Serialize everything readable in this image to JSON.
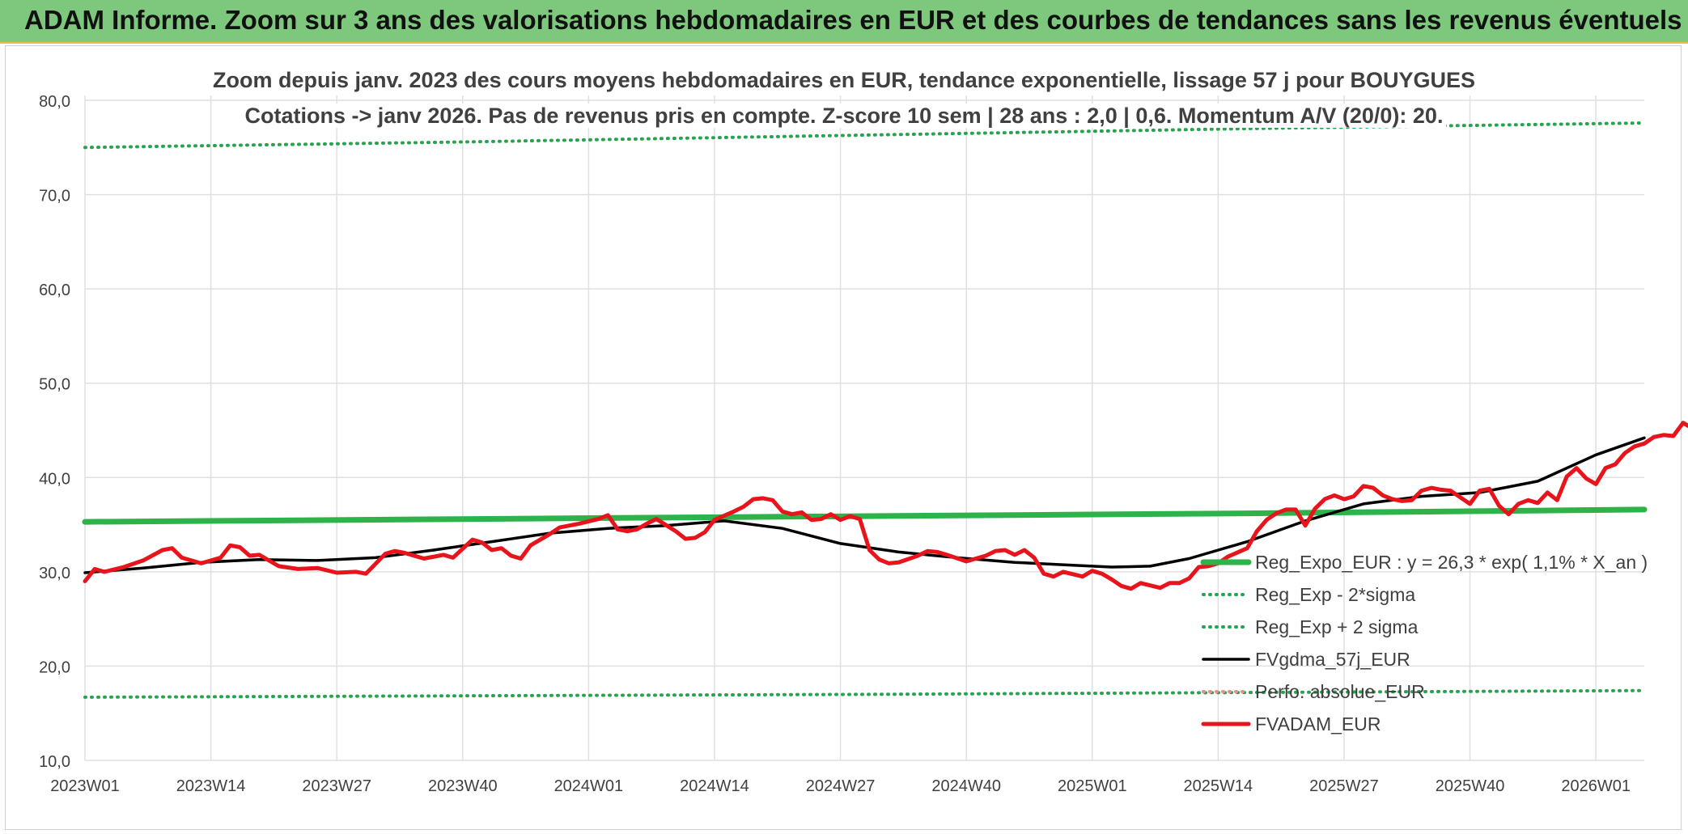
{
  "banner": {
    "title": "ADAM Informe. Zoom sur 3 ans des valorisations hebdomadaires en EUR et des courbes de tendances sans les revenus éventuels"
  },
  "chart_data": {
    "type": "line",
    "title": "Zoom depuis janv. 2023 des cours moyens hebdomadaires en EUR, tendance exponentielle, lissage 57 j pour BOUYGUES",
    "subtitle": "Cotations -> janv 2026. Pas de revenus pris en compte. Z-score 10 sem | 28 ans : 2,0 | 0,6. Momentum A/V (20/0): 20.",
    "x_tick_labels": [
      "2023W01",
      "2023W14",
      "2023W27",
      "2023W40",
      "2024W01",
      "2024W14",
      "2024W27",
      "2024W40",
      "2025W01",
      "2025W14",
      "2025W27",
      "2025W40",
      "2026W01"
    ],
    "x_week_range": [
      0,
      161
    ],
    "y_tick_labels": [
      "10,0",
      "20,0",
      "30,0",
      "40,0",
      "50,0",
      "60,0",
      "70,0",
      "80,0"
    ],
    "ylim": [
      10,
      80
    ],
    "grid": true,
    "legend_position": "right",
    "colors": {
      "trend_green": "#2db34a",
      "dotted_green": "#1fa84a",
      "smooth_black": "#000000",
      "price_red": "#e8141c",
      "perf_dotted": "#e09090",
      "grid": "#e0e0e0",
      "tick_text": "#404040"
    },
    "series": [
      {
        "name": "Reg_Expo_EUR : y = 26,3 * exp( 1,1% *  X_an )",
        "style": "solid-thick",
        "color": "#2db34a",
        "points": [
          [
            0,
            35.3
          ],
          [
            40,
            35.6
          ],
          [
            80,
            35.9
          ],
          [
            120,
            36.2
          ],
          [
            161,
            36.6
          ]
        ]
      },
      {
        "name": "Reg_Exp - 2*sigma",
        "style": "dotted",
        "color": "#1fa84a",
        "points": [
          [
            0,
            16.7
          ],
          [
            80,
            17.0
          ],
          [
            161,
            17.4
          ]
        ]
      },
      {
        "name": "Reg_Exp + 2 sigma",
        "style": "dotted",
        "color": "#1fa84a",
        "points": [
          [
            0,
            75.0
          ],
          [
            40,
            75.6
          ],
          [
            80,
            76.3
          ],
          [
            120,
            77.0
          ],
          [
            161,
            77.6
          ]
        ]
      },
      {
        "name": "FVgdma_57j_EUR",
        "style": "solid",
        "color": "#000000",
        "points": [
          [
            0,
            29.9
          ],
          [
            6,
            30.4
          ],
          [
            12,
            31.0
          ],
          [
            18,
            31.3
          ],
          [
            24,
            31.2
          ],
          [
            30,
            31.5
          ],
          [
            36,
            32.3
          ],
          [
            42,
            33.2
          ],
          [
            48,
            34.1
          ],
          [
            54,
            34.6
          ],
          [
            60,
            34.9
          ],
          [
            66,
            35.4
          ],
          [
            72,
            34.6
          ],
          [
            78,
            33.0
          ],
          [
            84,
            32.1
          ],
          [
            90,
            31.5
          ],
          [
            96,
            31.0
          ],
          [
            102,
            30.7
          ],
          [
            106,
            30.5
          ],
          [
            110,
            30.6
          ],
          [
            114,
            31.4
          ],
          [
            120,
            33.2
          ],
          [
            126,
            35.4
          ],
          [
            132,
            37.2
          ],
          [
            138,
            38.0
          ],
          [
            144,
            38.4
          ],
          [
            150,
            39.6
          ],
          [
            156,
            42.4
          ],
          [
            161,
            44.2
          ]
        ]
      },
      {
        "name": "Perfo. absolue_EUR",
        "style": "dotted",
        "color": "#e09090",
        "points": []
      },
      {
        "name": "FVADAM_EUR",
        "style": "solid-medium",
        "color": "#e8141c",
        "points": [
          [
            0,
            29.0
          ],
          [
            1,
            30.3
          ],
          [
            2,
            30.0
          ],
          [
            4,
            30.5
          ],
          [
            6,
            31.2
          ],
          [
            8,
            32.3
          ],
          [
            9,
            32.5
          ],
          [
            10,
            31.5
          ],
          [
            12,
            30.9
          ],
          [
            14,
            31.5
          ],
          [
            15,
            32.8
          ],
          [
            16,
            32.6
          ],
          [
            17,
            31.7
          ],
          [
            18,
            31.8
          ],
          [
            20,
            30.6
          ],
          [
            22,
            30.3
          ],
          [
            24,
            30.4
          ],
          [
            26,
            29.9
          ],
          [
            28,
            30.0
          ],
          [
            29,
            29.8
          ],
          [
            31,
            31.9
          ],
          [
            32,
            32.2
          ],
          [
            33,
            32.0
          ],
          [
            35,
            31.4
          ],
          [
            37,
            31.8
          ],
          [
            38,
            31.5
          ],
          [
            40,
            33.4
          ],
          [
            41,
            33.1
          ],
          [
            42,
            32.3
          ],
          [
            43,
            32.5
          ],
          [
            44,
            31.7
          ],
          [
            45,
            31.4
          ],
          [
            46,
            32.8
          ],
          [
            48,
            34.0
          ],
          [
            49,
            34.7
          ],
          [
            51,
            35.1
          ],
          [
            53,
            35.6
          ],
          [
            54,
            36.0
          ],
          [
            55,
            34.5
          ],
          [
            56,
            34.3
          ],
          [
            57,
            34.5
          ],
          [
            58,
            35.1
          ],
          [
            59,
            35.6
          ],
          [
            61,
            34.3
          ],
          [
            62,
            33.5
          ],
          [
            63,
            33.6
          ],
          [
            64,
            34.2
          ],
          [
            65,
            35.5
          ],
          [
            67,
            36.4
          ],
          [
            68,
            36.9
          ],
          [
            69,
            37.7
          ],
          [
            70,
            37.8
          ],
          [
            71,
            37.6
          ],
          [
            72,
            36.4
          ],
          [
            73,
            36.1
          ],
          [
            74,
            36.3
          ],
          [
            75,
            35.5
          ],
          [
            76,
            35.6
          ],
          [
            77,
            36.1
          ],
          [
            78,
            35.5
          ],
          [
            79,
            35.9
          ],
          [
            80,
            35.6
          ],
          [
            81,
            32.3
          ],
          [
            82,
            31.3
          ],
          [
            83,
            30.9
          ],
          [
            84,
            31.0
          ],
          [
            86,
            31.7
          ],
          [
            87,
            32.2
          ],
          [
            88,
            32.1
          ],
          [
            89,
            31.8
          ],
          [
            91,
            31.1
          ],
          [
            92,
            31.4
          ],
          [
            93,
            31.7
          ],
          [
            94,
            32.2
          ],
          [
            95,
            32.3
          ],
          [
            96,
            31.8
          ],
          [
            97,
            32.3
          ],
          [
            98,
            31.5
          ],
          [
            99,
            29.8
          ],
          [
            100,
            29.5
          ],
          [
            101,
            30.0
          ],
          [
            103,
            29.5
          ],
          [
            104,
            30.1
          ],
          [
            105,
            29.8
          ],
          [
            106,
            29.2
          ],
          [
            107,
            28.5
          ],
          [
            108,
            28.2
          ],
          [
            109,
            28.8
          ],
          [
            111,
            28.3
          ],
          [
            112,
            28.8
          ],
          [
            113,
            28.8
          ],
          [
            114,
            29.3
          ],
          [
            115,
            30.5
          ],
          [
            116,
            30.6
          ],
          [
            117,
            30.9
          ],
          [
            118,
            31.6
          ],
          [
            120,
            32.5
          ],
          [
            121,
            34.3
          ],
          [
            122,
            35.5
          ],
          [
            123,
            36.2
          ],
          [
            124,
            36.6
          ],
          [
            125,
            36.6
          ],
          [
            126,
            34.9
          ],
          [
            127,
            36.7
          ],
          [
            128,
            37.7
          ],
          [
            129,
            38.1
          ],
          [
            130,
            37.7
          ],
          [
            131,
            38.0
          ],
          [
            132,
            39.1
          ],
          [
            133,
            38.9
          ],
          [
            134,
            38.1
          ],
          [
            135,
            37.7
          ],
          [
            136,
            37.5
          ],
          [
            137,
            37.6
          ],
          [
            138,
            38.6
          ],
          [
            139,
            38.9
          ],
          [
            140,
            38.7
          ],
          [
            141,
            38.6
          ],
          [
            142,
            37.9
          ],
          [
            143,
            37.2
          ],
          [
            144,
            38.6
          ],
          [
            145,
            38.8
          ],
          [
            146,
            37.0
          ],
          [
            147,
            36.1
          ],
          [
            148,
            37.2
          ],
          [
            149,
            37.6
          ],
          [
            150,
            37.3
          ],
          [
            151,
            38.4
          ],
          [
            152,
            37.6
          ],
          [
            153,
            40.1
          ],
          [
            154,
            41.0
          ],
          [
            155,
            39.9
          ],
          [
            156,
            39.3
          ],
          [
            157,
            41.0
          ],
          [
            158,
            41.4
          ],
          [
            159,
            42.6
          ],
          [
            160,
            43.3
          ],
          [
            161,
            43.6
          ],
          [
            162,
            44.3
          ],
          [
            163,
            44.5
          ],
          [
            164,
            44.4
          ],
          [
            165,
            45.8
          ],
          [
            166,
            45.2
          ],
          [
            167,
            44.9
          ],
          [
            168,
            45.5
          ]
        ]
      }
    ]
  }
}
